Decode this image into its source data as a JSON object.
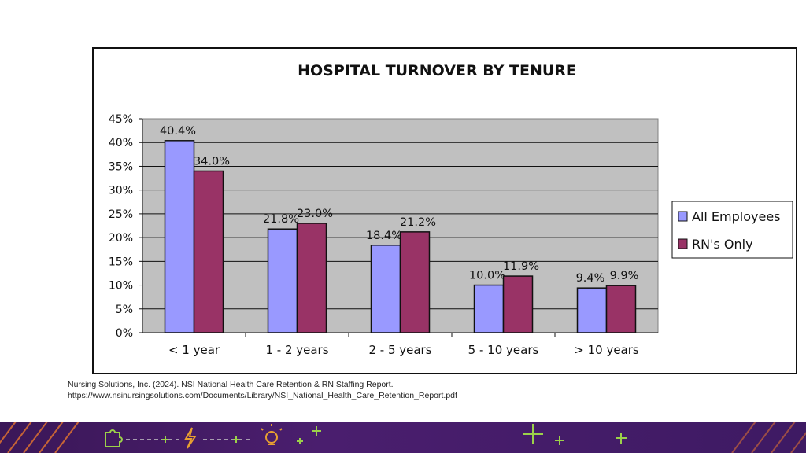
{
  "chart_data": {
    "type": "bar",
    "title": "HOSPITAL TURNOVER BY TENURE",
    "categories": [
      "< 1 year",
      "1 - 2 years",
      "2 - 5 years",
      "5 - 10 years",
      "> 10 years"
    ],
    "series": [
      {
        "name": "All Employees",
        "values": [
          40.4,
          21.8,
          18.4,
          10.0,
          9.4
        ],
        "labels": [
          "40.4%",
          "21.8%",
          "18.4%",
          "10.0%",
          "9.4%"
        ],
        "color": "#9999ff"
      },
      {
        "name": "RN's Only",
        "values": [
          34.0,
          23.0,
          21.2,
          11.9,
          9.9
        ],
        "labels": [
          "34.0%",
          "23.0%",
          "21.2%",
          "11.9%",
          "9.9%"
        ],
        "color": "#993366"
      }
    ],
    "ylim": [
      0,
      45
    ],
    "yticks": [
      "0%",
      "5%",
      "10%",
      "15%",
      "20%",
      "25%",
      "30%",
      "35%",
      "40%",
      "45%"
    ],
    "xlabel": "",
    "ylabel": "",
    "grid": true,
    "plot_background": "#c0c0c0",
    "legend_position": "right"
  },
  "citation": {
    "line1": "Nursing Solutions, Inc. (2024). NSI National Health Care Retention & RN Staffing Report.",
    "line2": "https://www.nsinursingsolutions.com/Documents/Library/NSI_National_Health_Care_Retention_Report.pdf"
  },
  "footer_band": {
    "background": "#3b1758",
    "accent_orange": "#e8772e",
    "accent_green": "#9bd14a",
    "icons": [
      "puzzle-icon",
      "lightning-icon",
      "lightbulb-icon",
      "plus-icon"
    ]
  }
}
